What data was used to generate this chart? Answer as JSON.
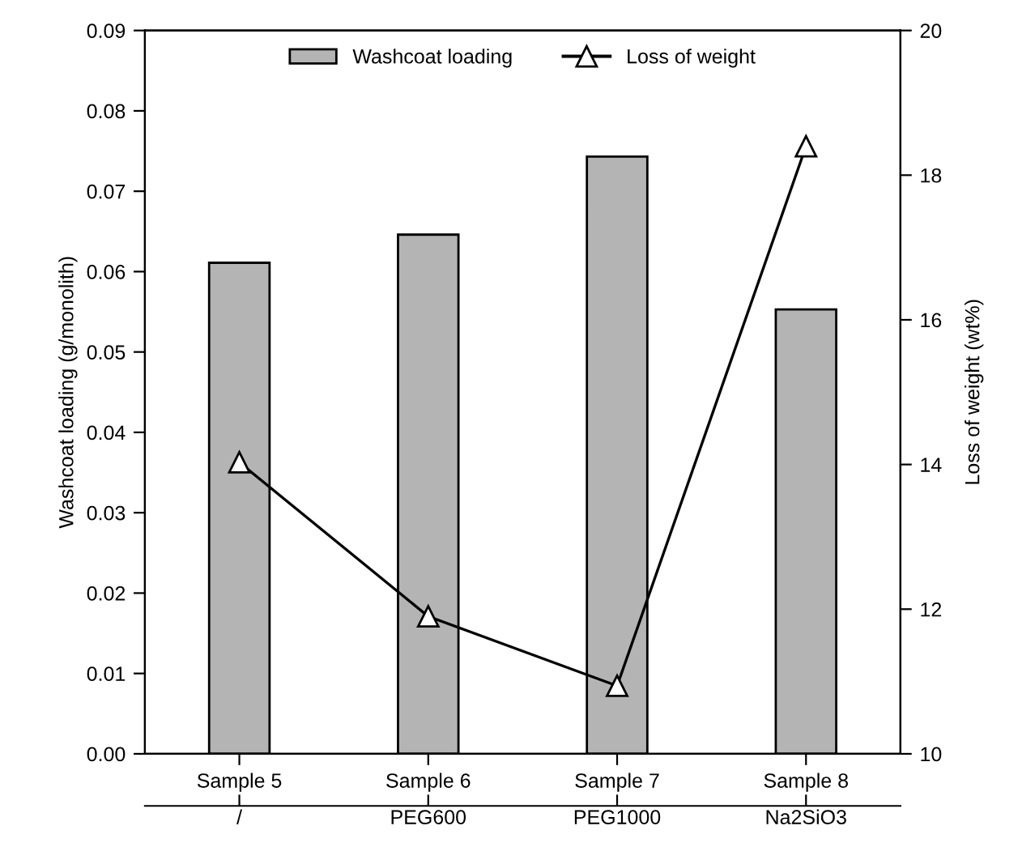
{
  "chart_data": {
    "type": "bar",
    "categories": [
      "Sample 5\n/",
      "Sample 6\nPEG600",
      "Sample 7\nPEG1000",
      "Sample 8\nNa2SiO3"
    ],
    "ylabel": "Washcoat loading (g/monolith)",
    "y2label": "Loss of weight (wt%)",
    "series": [
      {
        "name": "Washcoat loading",
        "color": "#b4b4b4",
        "values": [
          0.0611,
          0.0646,
          0.0743,
          0.0553
        ]
      },
      {
        "name": "Loss of weight",
        "type": "line",
        "axis": "y2",
        "color": "#000000",
        "marker": "triangle",
        "values": [
          14.03,
          11.9,
          10.94,
          18.4
        ]
      }
    ],
    "ylim": [
      0,
      0.09
    ],
    "yticks": [
      {
        "value": 0,
        "label": "0.00"
      },
      {
        "value": 0.01,
        "label": "0.01"
      },
      {
        "value": 0.02,
        "label": "0.02"
      },
      {
        "value": 0.03,
        "label": "0.03"
      },
      {
        "value": 0.04,
        "label": "0.04"
      },
      {
        "value": 0.05,
        "label": "0.05"
      },
      {
        "value": 0.06,
        "label": "0.06"
      },
      {
        "value": 0.07,
        "label": "0.07"
      },
      {
        "value": 0.08,
        "label": "0.08"
      },
      {
        "value": 0.09,
        "label": "0.09"
      }
    ],
    "y2lim": [
      10,
      20
    ],
    "y2ticks": [
      10,
      12,
      14,
      16,
      18,
      20
    ],
    "legend": "top",
    "grid": false
  }
}
